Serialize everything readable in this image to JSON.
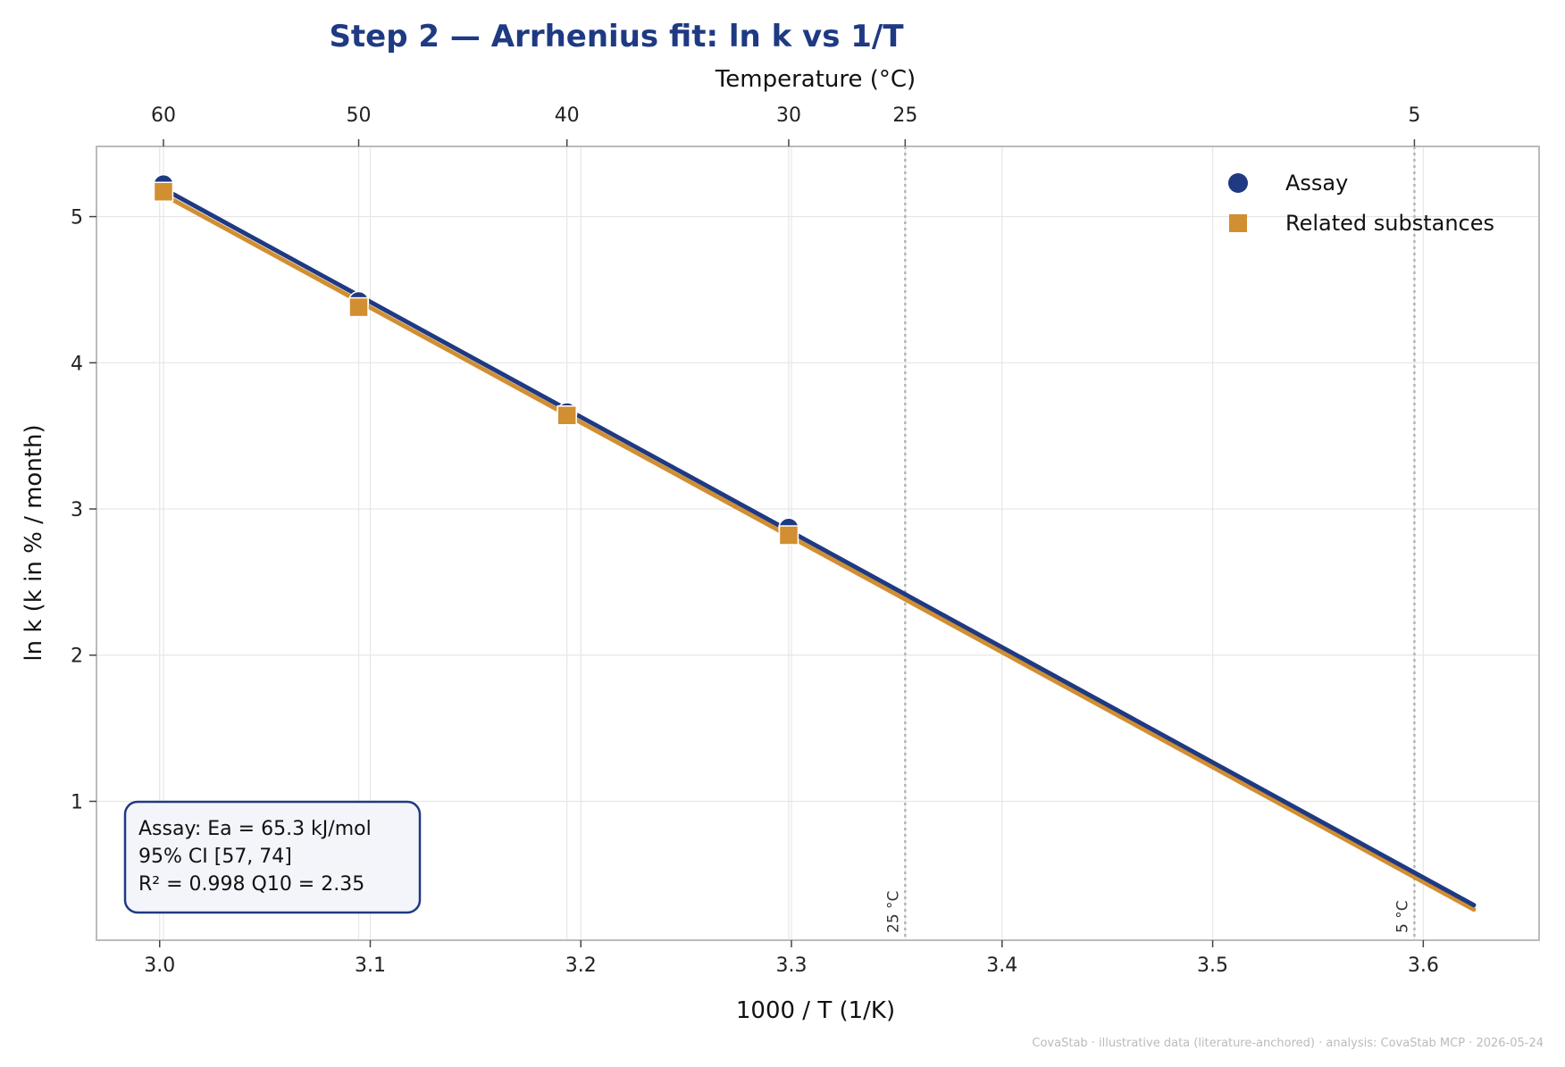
{
  "chart_data": {
    "type": "scatter",
    "title": "Step 2 — Arrhenius fit: ln k vs 1/T",
    "xlabel": "1000 / T  (1/K)",
    "ylabel": "ln k  (k in % / month)",
    "x2label": "Temperature (°C)",
    "xlim": [
      2.97,
      3.655
    ],
    "ylim": [
      0.05,
      5.48
    ],
    "xticks": [
      3.0,
      3.1,
      3.2,
      3.3,
      3.4,
      3.5,
      3.6
    ],
    "xtick_labels": [
      "3.0",
      "3.1",
      "3.2",
      "3.3",
      "3.4",
      "3.5",
      "3.6"
    ],
    "yticks": [
      1,
      2,
      3,
      4,
      5
    ],
    "ytick_labels": [
      "1",
      "2",
      "3",
      "4",
      "5"
    ],
    "top_ticks": [
      {
        "label": "60",
        "x": 3.0018
      },
      {
        "label": "50",
        "x": 3.0945
      },
      {
        "label": "40",
        "x": 3.1934
      },
      {
        "label": "30",
        "x": 3.2987
      },
      {
        "label": "25",
        "x": 3.354
      },
      {
        "label": "5",
        "x": 3.5958
      }
    ],
    "grid": true,
    "legend_position": "top-right",
    "colors": {
      "assay": "#1f3a83",
      "related": "#d18f31",
      "title": "#1f3a83"
    },
    "series": [
      {
        "name": "Assay",
        "marker": "circle",
        "color": "#1f3a83",
        "x": [
          3.0018,
          3.0945,
          3.1934,
          3.2987
        ],
        "y": [
          5.22,
          4.42,
          3.66,
          2.87
        ],
        "fit": {
          "x": [
            3.0018,
            3.624
          ],
          "y": [
            5.19,
            0.29
          ]
        }
      },
      {
        "name": "Related substances",
        "marker": "square",
        "color": "#d18f31",
        "x": [
          3.0018,
          3.0945,
          3.1934,
          3.2987
        ],
        "y": [
          5.17,
          4.38,
          3.64,
          2.82
        ],
        "fit": {
          "x": [
            3.0018,
            3.624
          ],
          "y": [
            5.15,
            0.26
          ]
        }
      }
    ],
    "reference_lines": [
      {
        "x": 3.354,
        "label": "25 °C"
      },
      {
        "x": 3.5958,
        "label": "5 °C"
      }
    ],
    "annotation": {
      "lines": [
        "Assay: Ea = 65.3 kJ/mol",
        "95% CI [57, 74]",
        "R² = 0.998   Q10 = 2.35"
      ]
    }
  },
  "footer": "CovaStab · illustrative data (literature-anchored) · analysis: CovaStab MCP · 2026-05-24"
}
